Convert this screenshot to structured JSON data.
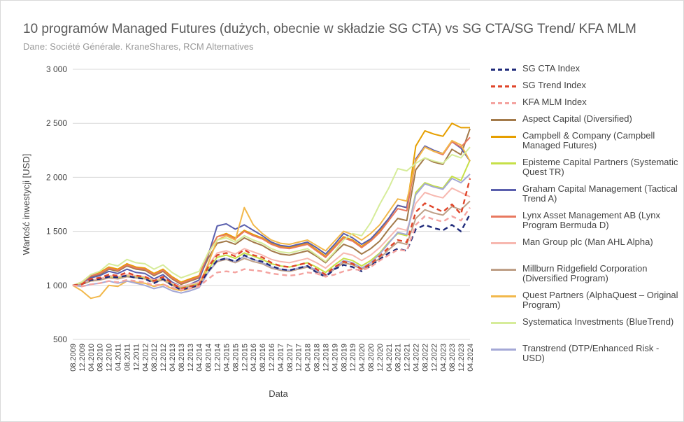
{
  "title": "10 programów Managed Futures (dużych, obecnie w składzie SG CTA) vs SG CTA/SG Trend/ KFA MLM",
  "subtitle": "Dane: Société Générale. KraneShares, RCM Alternatives",
  "chart_data": {
    "type": "line",
    "title": "10 programów Managed Futures (dużych, obecnie w składzie SG CTA) vs SG CTA/SG Trend/ KFA MLM",
    "xlabel": "Data",
    "ylabel": "Wartość inwestycji [USD]",
    "ylim": [
      500,
      3000
    ],
    "yticks": [
      500,
      1000,
      1500,
      2000,
      2500,
      3000
    ],
    "ytick_labels": [
      "500",
      "1 000",
      "1 500",
      "2 000",
      "2 500",
      "3 000"
    ],
    "xtick_labels": [
      "08.2009",
      "12.2009",
      "04.2010",
      "08.2010",
      "12.2010",
      "04.2011",
      "08.2011",
      "12.2011",
      "04.2012",
      "08.2012",
      "12.2012",
      "04.2013",
      "08.2013",
      "12.2013",
      "04.2014",
      "08.2014",
      "12.2014",
      "04.2015",
      "08.2015",
      "12.2015",
      "04.2016",
      "08.2016",
      "12.2016",
      "04.2017",
      "08.2017",
      "12.2017",
      "04.2018",
      "08.2018",
      "12.2018",
      "04.2019",
      "08.2019",
      "12.2019",
      "04.2020",
      "08.2020",
      "12.2020",
      "04.2021",
      "08.2021",
      "12.2021",
      "04.2022",
      "08.2022",
      "12.2022",
      "04.2023",
      "08.2023",
      "12.2023",
      "04.2024"
    ],
    "grid": true,
    "legend_position": "right",
    "series": [
      {
        "name": "SG CTA Index",
        "color": "#1f2a7a",
        "dash": "dashed",
        "values": [
          1000,
          1010,
          1050,
          1060,
          1080,
          1075,
          1090,
          1070,
          1060,
          1020,
          1060,
          1000,
          960,
          980,
          1000,
          1130,
          1230,
          1250,
          1220,
          1280,
          1240,
          1220,
          1180,
          1150,
          1140,
          1160,
          1180,
          1120,
          1080,
          1150,
          1190,
          1170,
          1130,
          1180,
          1240,
          1300,
          1340,
          1320,
          1520,
          1560,
          1530,
          1510,
          1560,
          1500,
          1660
        ]
      },
      {
        "name": "SG Trend Index",
        "color": "#e0452a",
        "dash": "dashed",
        "values": [
          1000,
          1010,
          1060,
          1070,
          1100,
          1090,
          1120,
          1090,
          1080,
          1040,
          1080,
          1020,
          970,
          990,
          1010,
          1170,
          1280,
          1300,
          1270,
          1330,
          1280,
          1260,
          1210,
          1180,
          1170,
          1190,
          1210,
          1150,
          1100,
          1170,
          1220,
          1200,
          1150,
          1200,
          1270,
          1350,
          1420,
          1400,
          1680,
          1760,
          1720,
          1680,
          1750,
          1660,
          1990
        ]
      },
      {
        "name": "KFA MLM Index",
        "color": "#f4a3a0",
        "dash": "dashed",
        "values": [
          1000,
          990,
          1010,
          1020,
          1040,
          1030,
          1050,
          1040,
          1030,
          1000,
          1010,
          980,
          960,
          970,
          990,
          1060,
          1120,
          1130,
          1120,
          1150,
          1140,
          1130,
          1110,
          1100,
          1090,
          1100,
          1120,
          1110,
          1080,
          1100,
          1130,
          1150,
          1140,
          1170,
          1230,
          1280,
          1330,
          1320,
          1560,
          1640,
          1610,
          1590,
          1640,
          1600,
          1720
        ]
      },
      {
        "name": "Aspect Capital (Diversified)",
        "color": "#a37a4a",
        "dash": "solid",
        "values": [
          1000,
          1020,
          1080,
          1100,
          1150,
          1130,
          1180,
          1150,
          1140,
          1090,
          1130,
          1060,
          1010,
          1040,
          1070,
          1250,
          1390,
          1410,
          1380,
          1440,
          1400,
          1370,
          1320,
          1290,
          1280,
          1300,
          1320,
          1270,
          1210,
          1300,
          1380,
          1350,
          1290,
          1340,
          1410,
          1520,
          1620,
          1600,
          2070,
          2180,
          2140,
          2120,
          2260,
          2210,
          2450
        ]
      },
      {
        "name": "Campbell & Company (Campbell Managed Futures)",
        "color": "#e69f00",
        "dash": "solid",
        "values": [
          1000,
          1030,
          1100,
          1120,
          1170,
          1150,
          1200,
          1170,
          1160,
          1110,
          1150,
          1080,
          1030,
          1060,
          1090,
          1300,
          1450,
          1480,
          1440,
          1510,
          1470,
          1440,
          1390,
          1360,
          1350,
          1370,
          1390,
          1330,
          1270,
          1360,
          1450,
          1420,
          1360,
          1420,
          1500,
          1620,
          1740,
          1720,
          2290,
          2430,
          2400,
          2380,
          2500,
          2460,
          2460
        ]
      },
      {
        "name": "Episteme Capital Partners (Systematic Quest TR)",
        "color": "#c6e048",
        "dash": "solid",
        "values": [
          1000,
          1010,
          1040,
          1050,
          1080,
          1070,
          1090,
          1080,
          1070,
          1040,
          1060,
          1010,
          980,
          1000,
          1020,
          1150,
          1260,
          1280,
          1250,
          1300,
          1270,
          1240,
          1200,
          1180,
          1170,
          1190,
          1210,
          1170,
          1120,
          1190,
          1250,
          1230,
          1180,
          1230,
          1300,
          1400,
          1480,
          1460,
          1860,
          1950,
          1920,
          1900,
          2010,
          1970,
          2160
        ]
      },
      {
        "name": "Graham Capital Management (Tactical Trend A)",
        "color": "#5a5fad",
        "dash": "solid",
        "values": [
          1000,
          1020,
          1070,
          1090,
          1130,
          1110,
          1150,
          1120,
          1110,
          1060,
          1100,
          1030,
          990,
          1010,
          1050,
          1280,
          1550,
          1570,
          1520,
          1560,
          1510,
          1460,
          1400,
          1370,
          1360,
          1380,
          1400,
          1350,
          1290,
          1380,
          1480,
          1440,
          1380,
          1430,
          1520,
          1620,
          1740,
          1720,
          2170,
          2290,
          2250,
          2220,
          2330,
          2270,
          2150
        ]
      },
      {
        "name": "Lynx Asset Management AB (Lynx Program Bermuda D)",
        "color": "#e8785f",
        "dash": "solid",
        "values": [
          1000,
          1020,
          1090,
          1110,
          1160,
          1140,
          1190,
          1160,
          1150,
          1100,
          1140,
          1070,
          1020,
          1050,
          1080,
          1290,
          1450,
          1470,
          1430,
          1500,
          1460,
          1430,
          1380,
          1350,
          1340,
          1360,
          1380,
          1320,
          1260,
          1350,
          1440,
          1410,
          1350,
          1410,
          1490,
          1600,
          1710,
          1690,
          2160,
          2280,
          2240,
          2210,
          2330,
          2280,
          2370
        ]
      },
      {
        "name": "Man Group plc (Man AHL Alpha)",
        "color": "#f7b8b0",
        "dash": "solid",
        "values": [
          1000,
          1010,
          1050,
          1060,
          1090,
          1080,
          1100,
          1090,
          1080,
          1050,
          1070,
          1020,
          990,
          1010,
          1030,
          1180,
          1300,
          1320,
          1290,
          1340,
          1310,
          1280,
          1240,
          1220,
          1210,
          1230,
          1250,
          1210,
          1160,
          1230,
          1300,
          1280,
          1230,
          1280,
          1350,
          1440,
          1530,
          1510,
          1760,
          1860,
          1830,
          1810,
          1900,
          1860,
          1820
        ]
      },
      {
        "name": "Millburn Ridgefield Corporation (Diversified Program)",
        "color": "#bfa088",
        "dash": "solid",
        "values": [
          1000,
          1010,
          1040,
          1050,
          1070,
          1060,
          1080,
          1070,
          1060,
          1030,
          1050,
          1000,
          970,
          990,
          1010,
          1120,
          1220,
          1240,
          1210,
          1250,
          1220,
          1200,
          1160,
          1140,
          1130,
          1150,
          1170,
          1130,
          1090,
          1150,
          1210,
          1190,
          1150,
          1190,
          1250,
          1330,
          1400,
          1380,
          1620,
          1700,
          1670,
          1650,
          1730,
          1700,
          1780
        ]
      },
      {
        "name": "Quest Partners (AlphaQuest – Original Program)",
        "color": "#f2b84b",
        "dash": "solid",
        "values": [
          1000,
          950,
          880,
          900,
          1000,
          990,
          1040,
          1030,
          1020,
          990,
          1010,
          970,
          950,
          970,
          1000,
          1200,
          1420,
          1460,
          1420,
          1720,
          1560,
          1480,
          1420,
          1390,
          1380,
          1400,
          1420,
          1370,
          1320,
          1410,
          1500,
          1470,
          1420,
          1480,
          1560,
          1680,
          1800,
          1780,
          2150,
          2280,
          2240,
          2220,
          2340,
          2300,
          2150
        ]
      },
      {
        "name": "Systematica Investments (BlueTrend)",
        "color": "#d6ec9a",
        "dash": "solid",
        "values": [
          1000,
          1030,
          1100,
          1130,
          1200,
          1180,
          1240,
          1210,
          1200,
          1150,
          1190,
          1120,
          1070,
          1100,
          1130,
          1300,
          1420,
          1440,
          1400,
          1460,
          1420,
          1390,
          1340,
          1310,
          1300,
          1320,
          1340,
          1280,
          1220,
          1310,
          1420,
          1480,
          1460,
          1580,
          1750,
          1900,
          2080,
          2060,
          2130,
          2180,
          2150,
          2130,
          2210,
          2180,
          2280
        ]
      },
      {
        "name": "Transtrend (DTP/Enhanced Risk - USD)",
        "color": "#a4a8d6",
        "dash": "solid",
        "values": [
          1000,
          990,
          1010,
          1020,
          1040,
          1020,
          1040,
          1020,
          1000,
          970,
          990,
          950,
          930,
          950,
          980,
          1120,
          1230,
          1250,
          1220,
          1270,
          1240,
          1210,
          1170,
          1150,
          1140,
          1160,
          1180,
          1140,
          1090,
          1160,
          1230,
          1210,
          1160,
          1210,
          1290,
          1390,
          1490,
          1470,
          1840,
          1940,
          1910,
          1890,
          1990,
          1950,
          2030
        ]
      }
    ]
  },
  "legend": [
    {
      "label": "SG CTA Index",
      "color": "#1f2a7a",
      "dash": "dashed"
    },
    {
      "label": "SG Trend Index",
      "color": "#e0452a",
      "dash": "dashed"
    },
    {
      "label": "KFA MLM Index",
      "color": "#f4a3a0",
      "dash": "dashed"
    },
    {
      "label": "Aspect Capital (Diversified)",
      "color": "#a37a4a",
      "dash": "solid"
    },
    {
      "label": "Campbell & Company (Campbell Managed Futures)",
      "color": "#e69f00",
      "dash": "solid"
    },
    {
      "label": "Episteme Capital Partners (Systematic Quest TR)",
      "color": "#c6e048",
      "dash": "solid"
    },
    {
      "label": "Graham Capital Management (Tactical Trend A)",
      "color": "#5a5fad",
      "dash": "solid"
    },
    {
      "label": "Lynx Asset Management AB (Lynx Program Bermuda D)",
      "color": "#e8785f",
      "dash": "solid"
    },
    {
      "label": "Man Group plc (Man AHL Alpha)",
      "color": "#f7b8b0",
      "dash": "solid"
    },
    {
      "label": "Millburn Ridgefield Corporation (Diversified Program)",
      "color": "#bfa088",
      "dash": "solid"
    },
    {
      "label": "Quest Partners (AlphaQuest – Original Program)",
      "color": "#f2b84b",
      "dash": "solid"
    },
    {
      "label": "Systematica Investments (BlueTrend)",
      "color": "#d6ec9a",
      "dash": "solid"
    },
    {
      "label": "Transtrend (DTP/Enhanced Risk - USD)",
      "color": "#a4a8d6",
      "dash": "solid"
    }
  ]
}
